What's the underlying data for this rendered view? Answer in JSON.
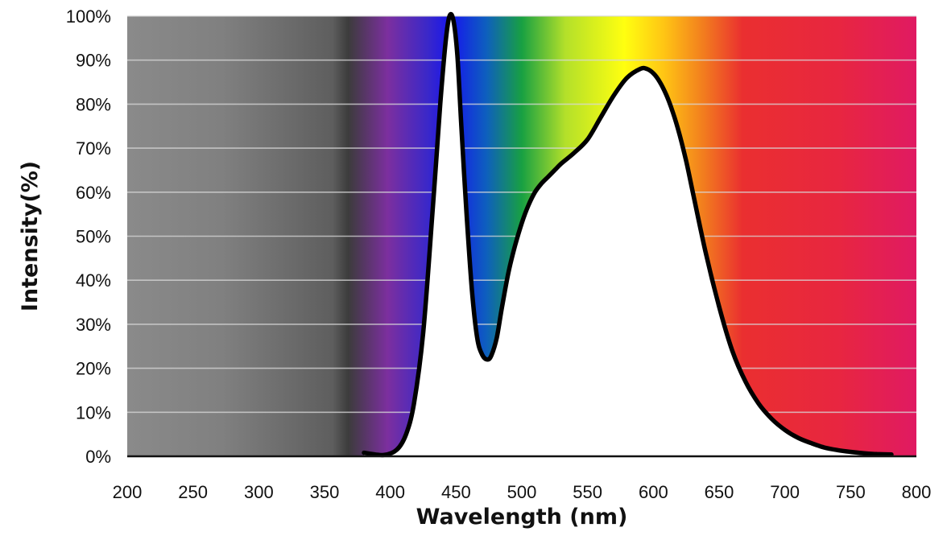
{
  "chart_data": {
    "type": "area",
    "title": "",
    "xlabel": "Wavelength (nm)",
    "ylabel": "Intensity(%)",
    "xlim": [
      200,
      800
    ],
    "ylim": [
      0,
      100
    ],
    "x_ticks": [
      200,
      250,
      300,
      350,
      400,
      450,
      500,
      550,
      600,
      650,
      700,
      750,
      800
    ],
    "x_tick_labels": [
      "200",
      "250",
      "300",
      "350",
      "400",
      "450",
      "500",
      "550",
      "600",
      "650",
      "700",
      "750",
      "800"
    ],
    "y_ticks": [
      0,
      10,
      20,
      30,
      40,
      50,
      60,
      70,
      80,
      90,
      100
    ],
    "y_tick_labels": [
      "0%",
      "10%",
      "20%",
      "30%",
      "40%",
      "50%",
      "60%",
      "70%",
      "80%",
      "90%",
      "100%"
    ],
    "grid": true,
    "legend": "none",
    "background": "visible-light spectrum gradient",
    "series": [
      {
        "x": [
          380,
          395,
          405,
          412,
          418,
          425,
          432,
          438,
          442,
          445,
          448,
          451,
          454,
          458,
          462,
          466,
          470,
          474,
          477,
          481,
          485,
          490,
          495,
          500,
          505,
          510,
          515,
          520,
          525,
          530,
          540,
          550,
          560,
          570,
          580,
          590,
          595,
          600,
          605,
          610,
          615,
          620,
          625,
          630,
          640,
          650,
          660,
          670,
          680,
          690,
          700,
          710,
          720,
          730,
          740,
          750,
          760,
          770,
          781
        ],
        "y": [
          0.8,
          0.3,
          1.5,
          5,
          12,
          28,
          55,
          80,
          94,
          100,
          99,
          91,
          75,
          55,
          38,
          27,
          23,
          22,
          23,
          27,
          34,
          42,
          48,
          53,
          57,
          60,
          62,
          63.5,
          65,
          66.5,
          69,
          72,
          77,
          82,
          86,
          88,
          88,
          87,
          85,
          82,
          78,
          73,
          67,
          60,
          46,
          34,
          24,
          17,
          12,
          8.5,
          6,
          4.2,
          3,
          2,
          1.4,
          1,
          0.7,
          0.5,
          0.4
        ]
      }
    ],
    "colors": {
      "curve": "#000000",
      "fill_under_curve": "#ffffff",
      "gridline": "#d8d8d8",
      "gray_dark": "#3c3c3c",
      "gray_light": "#8a8a8a",
      "violet": "#7c2f9f",
      "blue": "#1616ee",
      "green": "#18a042",
      "yellow": "#ffff10",
      "orange": "#f27d1e",
      "red": "#ea2f30",
      "magenta": "#e01a62"
    }
  }
}
